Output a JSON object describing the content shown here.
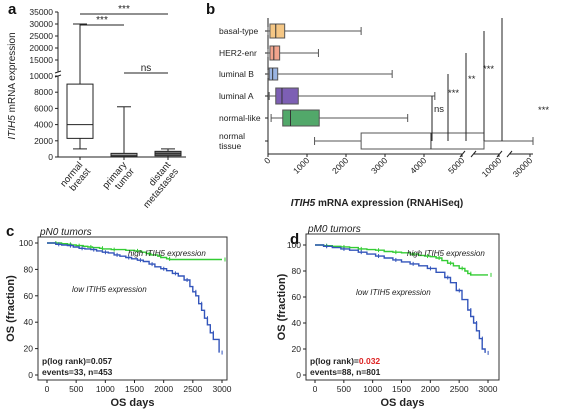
{
  "panels": [
    {
      "letter": "a"
    },
    {
      "letter": "b"
    },
    {
      "letter": "c"
    },
    {
      "letter": "d"
    }
  ],
  "chart_data": [
    {
      "panel": "a",
      "type": "box",
      "ylabel_italic": "ITIH5",
      "ylabel_rest": " mRNA expression",
      "yscale": "broken",
      "yticks": [
        0,
        2000,
        4000,
        6000,
        8000,
        10000,
        15000,
        20000,
        25000,
        30000,
        35000
      ],
      "categories": [
        "normal breast",
        "primary tumor",
        "distant metastases"
      ],
      "category_lines": [
        [
          "normal",
          "breast"
        ],
        [
          "primary",
          "tumor"
        ],
        [
          "distant",
          "metastases"
        ]
      ],
      "boxes": [
        {
          "min": 1000,
          "q1": 2300,
          "median": 4000,
          "q3": 9000,
          "max": 30000
        },
        {
          "min": 0,
          "q1": 50,
          "median": 150,
          "q3": 450,
          "max": 6200
        },
        {
          "min": 0,
          "q1": 150,
          "median": 400,
          "q3": 700,
          "max": 1000
        }
      ],
      "fill_colors": [
        "#ffffff",
        "#9a9a9a",
        "#6f6f6f"
      ],
      "significance": [
        {
          "from": 0,
          "to": 2,
          "label": "***"
        },
        {
          "from": 0,
          "to": 1,
          "label": "***"
        },
        {
          "from": 1,
          "to": 2,
          "label": "ns"
        }
      ]
    },
    {
      "panel": "b",
      "type": "box-horizontal",
      "xlabel_italic": "ITIH5",
      "xlabel_rest": " mRNA expression (RNAHiSeq)",
      "xscale": "broken",
      "xticks": [
        0,
        1000,
        2000,
        3000,
        4000,
        5000,
        10000,
        30000
      ],
      "xtick_labels": [
        "0",
        "1000",
        "2000",
        "3000",
        "4000",
        "5000",
        "10000",
        "30000"
      ],
      "categories": [
        "basal-type",
        "HER2-enr",
        "luminal B",
        "luminal A",
        "normal-like",
        "normal tissue"
      ],
      "category_lines": [
        [
          "basal-type"
        ],
        [
          "HER2-enr"
        ],
        [
          "luminal B"
        ],
        [
          "luminal A"
        ],
        [
          "normal-like"
        ],
        [
          "normal",
          "tissue"
        ]
      ],
      "boxes": [
        {
          "min": 0,
          "q1": 50,
          "median": 200,
          "q3": 430,
          "max": 2400
        },
        {
          "min": 0,
          "q1": 50,
          "median": 150,
          "q3": 300,
          "max": 1300
        },
        {
          "min": 0,
          "q1": 30,
          "median": 120,
          "q3": 250,
          "max": 3200
        },
        {
          "min": 30,
          "q1": 200,
          "median": 360,
          "q3": 780,
          "max": 4300
        },
        {
          "min": 80,
          "q1": 380,
          "median": 580,
          "q3": 1320,
          "max": 3600
        },
        {
          "min": 1200,
          "q1": 2400,
          "median": 4200,
          "q3": 7000,
          "max": 32000
        }
      ],
      "fill_colors": [
        "#f5c785",
        "#f2a48d",
        "#9ab4e2",
        "#7d5fb4",
        "#52a86a",
        "#ffffff"
      ],
      "significance": [
        {
          "label": "ns"
        },
        {
          "label": "***"
        },
        {
          "label": "**"
        },
        {
          "label": "***"
        },
        {
          "label": "***"
        }
      ]
    },
    {
      "panel": "c",
      "type": "line",
      "title": "pN0 tumors",
      "xlabel": "OS days",
      "ylabel": "OS (fraction)",
      "xlim": [
        0,
        3000
      ],
      "ylim": [
        0,
        100
      ],
      "xticks": [
        0,
        500,
        1000,
        1500,
        2000,
        2500,
        3000
      ],
      "yticks": [
        0,
        20,
        40,
        60,
        80,
        100
      ],
      "series": [
        {
          "label_lines": [
            "high ",
            "ITIH5",
            " expression"
          ],
          "color": "#33cc33",
          "x": [
            0,
            100,
            250,
            350,
            420,
            500,
            620,
            700,
            780,
            900,
            950,
            1100,
            1350,
            1500,
            1620,
            1700,
            1780,
            1900,
            1950,
            2050,
            2100,
            3000
          ],
          "y": [
            100,
            100,
            99.5,
            99,
            98.5,
            98,
            97.5,
            97,
            96.5,
            96,
            95.5,
            95,
            94.5,
            94,
            93,
            92,
            91,
            90,
            89,
            88,
            87.5,
            87.5
          ]
        },
        {
          "label_lines": [
            "low ",
            "ITIH5",
            " expression"
          ],
          "color": "#3355bb",
          "x": [
            0,
            150,
            250,
            350,
            450,
            550,
            650,
            750,
            850,
            950,
            1050,
            1150,
            1250,
            1350,
            1450,
            1550,
            1650,
            1750,
            1850,
            1950,
            2050,
            2150,
            2250,
            2350,
            2450,
            2500,
            2550,
            2600,
            2650,
            2700,
            2750,
            2800,
            2850,
            2950
          ],
          "y": [
            100,
            99,
            98.5,
            98,
            97,
            96,
            95.5,
            95,
            94,
            93,
            92.5,
            91,
            90,
            89,
            88,
            87,
            86,
            84,
            82,
            80.5,
            79,
            77,
            75,
            72,
            67,
            63,
            60,
            54,
            49,
            43,
            38,
            32,
            27,
            17
          ]
        }
      ],
      "stats": {
        "label": "p(log rank)=",
        "value": "0.057",
        "value_color": "#222222",
        "events": "events=33, n=453"
      }
    },
    {
      "panel": "d",
      "type": "line",
      "title": "pM0 tumors",
      "xlabel": "OS days",
      "ylabel": "OS (fraction)",
      "xlim": [
        0,
        3000
      ],
      "ylim": [
        0,
        100
      ],
      "xticks": [
        0,
        500,
        1000,
        1500,
        2000,
        2500,
        3000
      ],
      "yticks": [
        0,
        20,
        40,
        60,
        80,
        100
      ],
      "series": [
        {
          "label_lines": [
            "high ",
            "ITIH5",
            " expression"
          ],
          "color": "#33cc33",
          "x": [
            0,
            150,
            300,
            450,
            600,
            750,
            900,
            1050,
            1200,
            1350,
            1500,
            1650,
            1800,
            1900,
            2000,
            2100,
            2200,
            2300,
            2400,
            2500,
            2600,
            2650,
            2700,
            3000
          ],
          "y": [
            100,
            99.5,
            99,
            98.5,
            98,
            97,
            96.5,
            96,
            95,
            94.5,
            94,
            93,
            92,
            91.5,
            91,
            90,
            88,
            86,
            84,
            82,
            80,
            78,
            77,
            77
          ]
        },
        {
          "label_lines": [
            "low ",
            "ITIH5",
            " expression"
          ],
          "color": "#3355bb",
          "x": [
            0,
            150,
            300,
            450,
            600,
            750,
            900,
            1050,
            1200,
            1350,
            1500,
            1650,
            1800,
            1950,
            2100,
            2250,
            2350,
            2450,
            2550,
            2650,
            2700,
            2750,
            2800,
            2850,
            2900,
            2950
          ],
          "y": [
            100,
            99,
            98,
            97,
            96,
            94.5,
            93,
            91.5,
            90,
            88.5,
            87,
            85.5,
            84,
            82,
            79,
            75,
            71,
            65,
            58,
            50,
            45,
            40,
            34,
            28,
            20,
            17
          ]
        }
      ],
      "stats": {
        "label": "p(log rank)=",
        "value": "0.032",
        "value_color": "#dd2222",
        "events": "events=88, n=801"
      }
    }
  ]
}
